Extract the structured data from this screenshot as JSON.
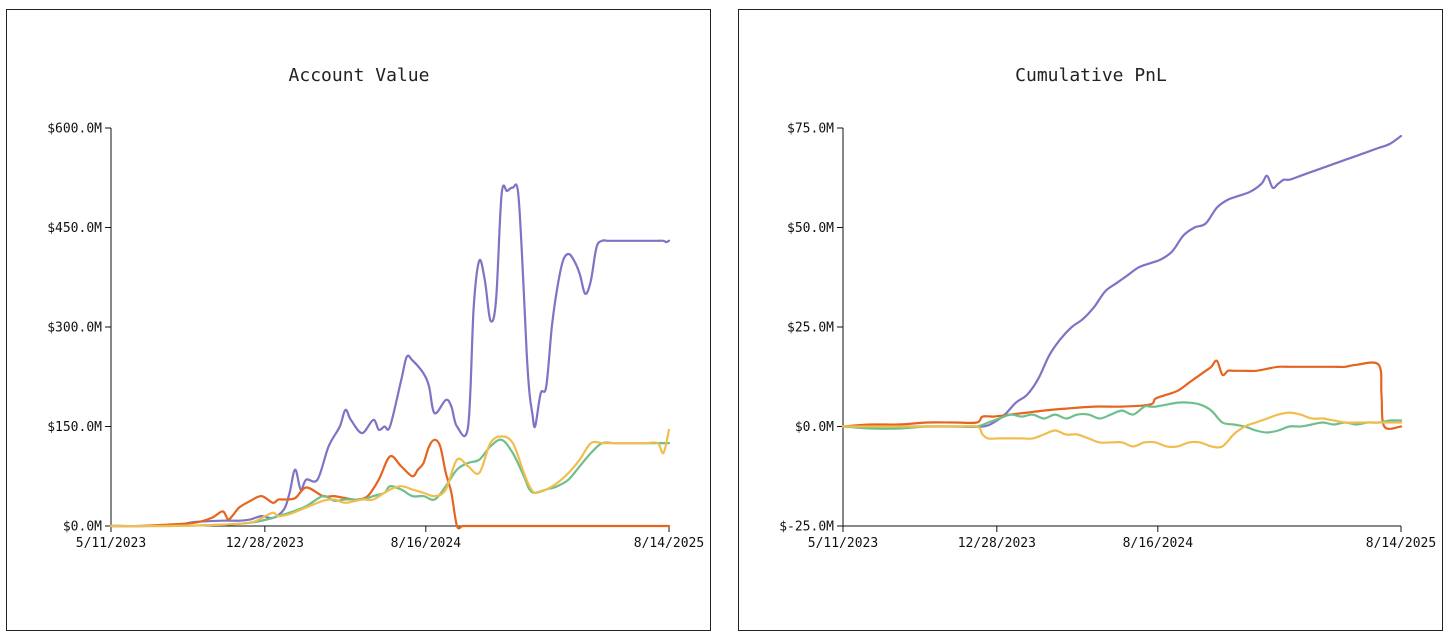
{
  "chart_data": [
    {
      "type": "line",
      "title": "Account Value",
      "xlabel": "",
      "ylabel": "",
      "x_ticks": [
        "5/11/2023",
        "12/28/2023",
        "8/16/2024",
        "8/14/2025"
      ],
      "x_tick_pos": [
        0,
        0.2757,
        0.5642,
        1
      ],
      "y_ticks": [
        "$0.0M",
        "$150.0M",
        "$300.0M",
        "$450.0M",
        "$600.0M"
      ],
      "ylim": [
        0,
        600
      ],
      "xlim": [
        0,
        1
      ],
      "series": [
        {
          "name": "purple",
          "color": "#7e73c4",
          "x": [
            0,
            0.06,
            0.12,
            0.15,
            0.2,
            0.23,
            0.25,
            0.27,
            0.29,
            0.31,
            0.32,
            0.33,
            0.34,
            0.35,
            0.37,
            0.39,
            0.41,
            0.42,
            0.43,
            0.45,
            0.47,
            0.48,
            0.49,
            0.5,
            0.52,
            0.53,
            0.54,
            0.56,
            0.57,
            0.58,
            0.6,
            0.61,
            0.62,
            0.64,
            0.65,
            0.66,
            0.67,
            0.68,
            0.69,
            0.7,
            0.71,
            0.72,
            0.73,
            0.74,
            0.745,
            0.75,
            0.755,
            0.76,
            0.77,
            0.78,
            0.79,
            0.8,
            0.81,
            0.82,
            0.83,
            0.84,
            0.85,
            0.86,
            0.87,
            0.88,
            0.89,
            0.9,
            0.91,
            0.92,
            0.93,
            0.94,
            0.95,
            0.96,
            0.97,
            0.98,
            0.99,
            0.995,
            1
          ],
          "y": [
            0,
            0,
            2,
            6,
            8,
            8,
            10,
            15,
            12,
            25,
            50,
            85,
            55,
            70,
            70,
            120,
            150,
            175,
            160,
            140,
            160,
            145,
            150,
            150,
            220,
            255,
            250,
            230,
            210,
            170,
            190,
            180,
            150,
            150,
            330,
            400,
            370,
            310,
            340,
            500,
            505,
            510,
            500,
            350,
            260,
            200,
            170,
            150,
            200,
            210,
            300,
            360,
            400,
            410,
            400,
            380,
            350,
            370,
            420,
            430,
            430,
            430,
            430,
            430,
            430,
            430,
            430,
            430,
            430,
            430,
            430,
            428,
            430
          ]
        },
        {
          "name": "orange",
          "color": "#e5651f",
          "x": [
            0,
            0.05,
            0.1,
            0.15,
            0.18,
            0.2,
            0.21,
            0.22,
            0.23,
            0.25,
            0.27,
            0.29,
            0.3,
            0.31,
            0.33,
            0.35,
            0.38,
            0.4,
            0.42,
            0.44,
            0.46,
            0.48,
            0.5,
            0.52,
            0.54,
            0.55,
            0.56,
            0.57,
            0.58,
            0.59,
            0.6,
            0.61,
            0.62,
            0.63,
            0.64,
            0.65,
            0.66,
            0.67,
            0.68,
            0.69,
            0.7,
            0.8,
            0.9,
            1
          ],
          "y": [
            0,
            0,
            2,
            5,
            12,
            22,
            10,
            18,
            28,
            38,
            45,
            35,
            40,
            40,
            42,
            58,
            45,
            45,
            42,
            40,
            45,
            70,
            105,
            90,
            75,
            85,
            95,
            120,
            130,
            120,
            80,
            50,
            0,
            0,
            0,
            0,
            0,
            0,
            0,
            0,
            0,
            0,
            0,
            0
          ]
        },
        {
          "name": "green",
          "color": "#6fbf8c",
          "x": [
            0,
            0.1,
            0.2,
            0.25,
            0.28,
            0.3,
            0.32,
            0.35,
            0.38,
            0.4,
            0.42,
            0.45,
            0.47,
            0.49,
            0.5,
            0.52,
            0.54,
            0.56,
            0.58,
            0.6,
            0.62,
            0.64,
            0.66,
            0.68,
            0.7,
            0.72,
            0.74,
            0.75,
            0.76,
            0.78,
            0.8,
            0.82,
            0.84,
            0.86,
            0.88,
            0.9,
            0.92,
            0.94,
            0.96,
            0.98,
            1
          ],
          "y": [
            0,
            0,
            2,
            5,
            10,
            15,
            20,
            30,
            45,
            38,
            40,
            40,
            45,
            50,
            60,
            55,
            45,
            45,
            40,
            60,
            85,
            95,
            100,
            120,
            130,
            110,
            75,
            55,
            50,
            55,
            60,
            70,
            90,
            110,
            125,
            125,
            125,
            125,
            125,
            125,
            125
          ]
        },
        {
          "name": "yellow",
          "color": "#f0be4e",
          "x": [
            0,
            0.1,
            0.2,
            0.25,
            0.27,
            0.29,
            0.3,
            0.32,
            0.35,
            0.38,
            0.4,
            0.42,
            0.45,
            0.47,
            0.5,
            0.52,
            0.54,
            0.56,
            0.58,
            0.6,
            0.62,
            0.64,
            0.66,
            0.68,
            0.7,
            0.72,
            0.74,
            0.75,
            0.76,
            0.78,
            0.8,
            0.82,
            0.84,
            0.86,
            0.88,
            0.9,
            0.92,
            0.94,
            0.96,
            0.98,
            0.99,
            1
          ],
          "y": [
            0,
            0,
            2,
            5,
            12,
            20,
            15,
            18,
            28,
            38,
            40,
            35,
            40,
            40,
            55,
            60,
            55,
            50,
            45,
            55,
            100,
            90,
            80,
            125,
            135,
            125,
            80,
            60,
            50,
            55,
            65,
            80,
            100,
            125,
            125,
            125,
            125,
            125,
            125,
            125,
            110,
            145
          ]
        }
      ]
    },
    {
      "type": "line",
      "title": "Cumulative PnL",
      "xlabel": "",
      "ylabel": "",
      "x_ticks": [
        "5/11/2023",
        "12/28/2023",
        "8/16/2024",
        "8/14/2025"
      ],
      "x_tick_pos": [
        0,
        0.2757,
        0.5642,
        1
      ],
      "y_ticks": [
        "$-25.0M",
        "$0.0M",
        "$25.0M",
        "$50.0M",
        "$75.0M"
      ],
      "ylim": [
        -25,
        75
      ],
      "xlim": [
        0,
        1
      ],
      "series": [
        {
          "name": "purple",
          "color": "#7e73c4",
          "x": [
            0,
            0.1,
            0.2,
            0.25,
            0.27,
            0.29,
            0.31,
            0.33,
            0.35,
            0.37,
            0.39,
            0.41,
            0.43,
            0.45,
            0.47,
            0.49,
            0.51,
            0.53,
            0.55,
            0.57,
            0.59,
            0.61,
            0.63,
            0.65,
            0.67,
            0.69,
            0.71,
            0.73,
            0.75,
            0.76,
            0.77,
            0.78,
            0.79,
            0.8,
            0.82,
            0.84,
            0.86,
            0.88,
            0.9,
            0.92,
            0.94,
            0.96,
            0.98,
            1
          ],
          "y": [
            0,
            0,
            0,
            0,
            1,
            3,
            6,
            8,
            12,
            18,
            22,
            25,
            27,
            30,
            34,
            36,
            38,
            40,
            41,
            42,
            44,
            48,
            50,
            51,
            55,
            57,
            58,
            59,
            61,
            63,
            60,
            61,
            62,
            62,
            63,
            64,
            65,
            66,
            67,
            68,
            69,
            70,
            71,
            73
          ]
        },
        {
          "name": "orange",
          "color": "#e5651f",
          "x": [
            0,
            0.05,
            0.1,
            0.15,
            0.2,
            0.24,
            0.25,
            0.27,
            0.3,
            0.33,
            0.36,
            0.4,
            0.45,
            0.5,
            0.55,
            0.56,
            0.58,
            0.6,
            0.62,
            0.63,
            0.64,
            0.65,
            0.66,
            0.67,
            0.68,
            0.69,
            0.7,
            0.72,
            0.74,
            0.76,
            0.78,
            0.8,
            0.82,
            0.84,
            0.86,
            0.88,
            0.9,
            0.92,
            0.96,
            0.965,
            0.97,
            1
          ],
          "y": [
            0,
            0.5,
            0.5,
            1,
            1,
            1,
            2.5,
            2.5,
            3,
            3.5,
            4,
            4.5,
            5,
            5,
            5.5,
            7,
            8,
            9,
            11,
            12,
            13,
            14,
            15,
            16.5,
            13,
            14,
            14,
            14,
            14,
            14.5,
            15,
            15,
            15,
            15,
            15,
            15,
            15,
            15.5,
            15.5,
            8,
            0,
            0
          ]
        },
        {
          "name": "green",
          "color": "#6fbf8c",
          "x": [
            0,
            0.05,
            0.1,
            0.15,
            0.2,
            0.24,
            0.26,
            0.28,
            0.3,
            0.32,
            0.34,
            0.36,
            0.38,
            0.4,
            0.42,
            0.44,
            0.46,
            0.48,
            0.5,
            0.52,
            0.54,
            0.55,
            0.56,
            0.58,
            0.6,
            0.62,
            0.64,
            0.66,
            0.68,
            0.7,
            0.72,
            0.74,
            0.76,
            0.78,
            0.8,
            0.82,
            0.84,
            0.86,
            0.88,
            0.9,
            0.92,
            0.94,
            0.96,
            0.98,
            1
          ],
          "y": [
            0,
            -0.5,
            -0.5,
            0,
            0,
            0,
            1,
            2,
            3,
            2.5,
            3,
            2,
            3,
            2,
            3,
            3,
            2,
            3,
            4,
            3,
            5,
            5,
            5,
            5.5,
            6,
            6,
            5.5,
            4,
            1,
            0.5,
            0,
            -1,
            -1.5,
            -1,
            0,
            0,
            0.5,
            1,
            0.5,
            1,
            0.5,
            1,
            1,
            1.5,
            1.5
          ]
        },
        {
          "name": "yellow",
          "color": "#f0be4e",
          "x": [
            0,
            0.1,
            0.2,
            0.24,
            0.25,
            0.26,
            0.28,
            0.3,
            0.32,
            0.34,
            0.36,
            0.38,
            0.4,
            0.42,
            0.44,
            0.46,
            0.48,
            0.5,
            0.52,
            0.54,
            0.56,
            0.58,
            0.6,
            0.62,
            0.64,
            0.66,
            0.68,
            0.7,
            0.72,
            0.74,
            0.76,
            0.78,
            0.8,
            0.82,
            0.84,
            0.86,
            0.88,
            0.9,
            0.92,
            0.94,
            0.96,
            0.98,
            1
          ],
          "y": [
            0,
            0,
            0,
            0,
            -2,
            -3,
            -3,
            -3,
            -3,
            -3,
            -2,
            -1,
            -2,
            -2,
            -3,
            -4,
            -4,
            -4,
            -5,
            -4,
            -4,
            -5,
            -5,
            -4,
            -4,
            -5,
            -5,
            -2,
            0,
            1,
            2,
            3,
            3.5,
            3,
            2,
            2,
            1.5,
            1,
            1,
            1,
            1,
            1,
            1
          ]
        }
      ]
    }
  ]
}
